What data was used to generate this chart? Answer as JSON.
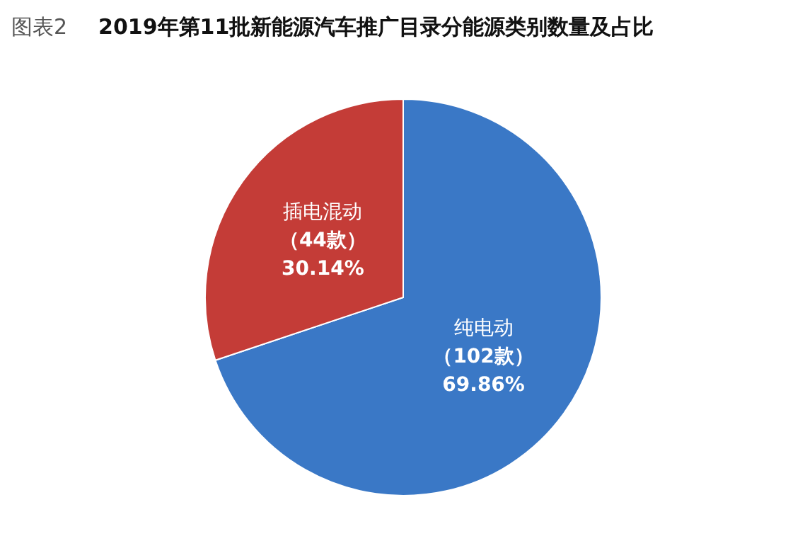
{
  "chart_data": {
    "type": "pie",
    "subtitle": "图表2",
    "title": "2019年第11批新能源汽车推广目录分能源类别数量及占比",
    "categories": [
      "纯电动",
      "插电混动"
    ],
    "values": [
      102,
      44
    ],
    "value_labels": [
      "（102款）\n69.86%",
      "（44款）\n30.14%"
    ],
    "colors": [
      "#3a78c6",
      "#c43c37"
    ]
  }
}
